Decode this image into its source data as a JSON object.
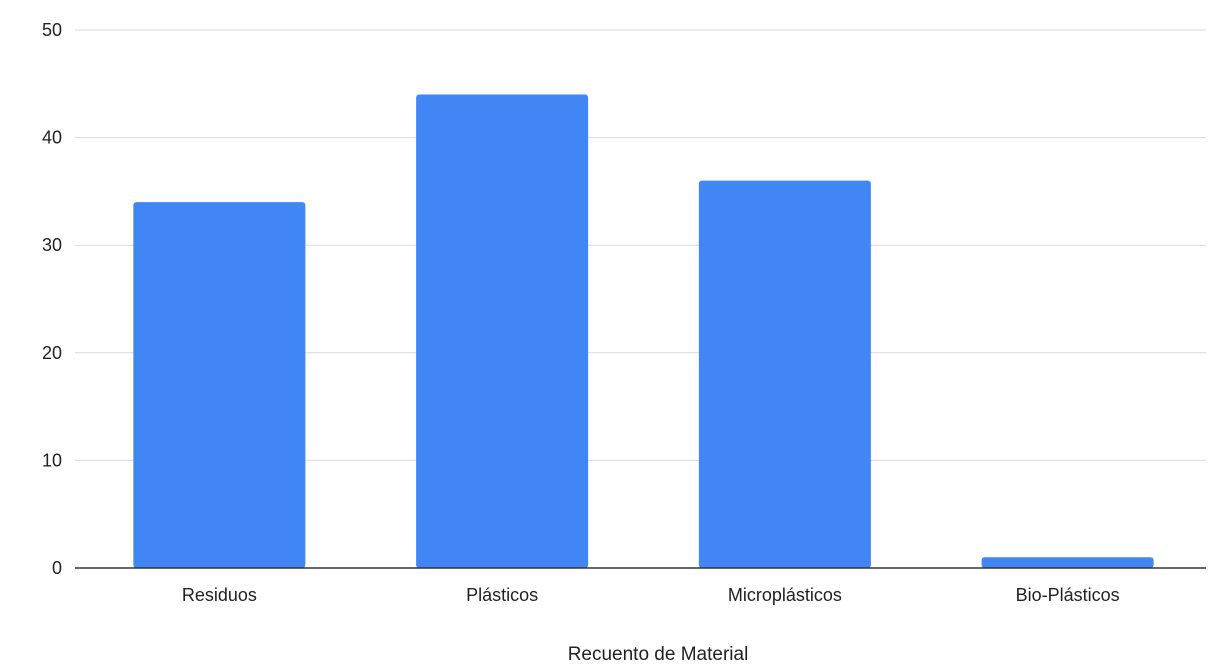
{
  "chart_data": {
    "type": "bar",
    "categories": [
      "Residuos",
      "Plásticos",
      "Microplásticos",
      "Bio-Plásticos"
    ],
    "values": [
      34,
      44,
      36,
      1
    ],
    "title": "",
    "xlabel": "Recuento de Material",
    "ylabel": "",
    "ylim": [
      0,
      50
    ],
    "yticks": [
      0,
      10,
      20,
      30,
      40,
      50
    ],
    "grid": true,
    "legend": "none",
    "bar_color": "#4285F4",
    "grid_color": "#d9d9d9",
    "baseline_color": "#333333",
    "text_color": "#222222"
  }
}
